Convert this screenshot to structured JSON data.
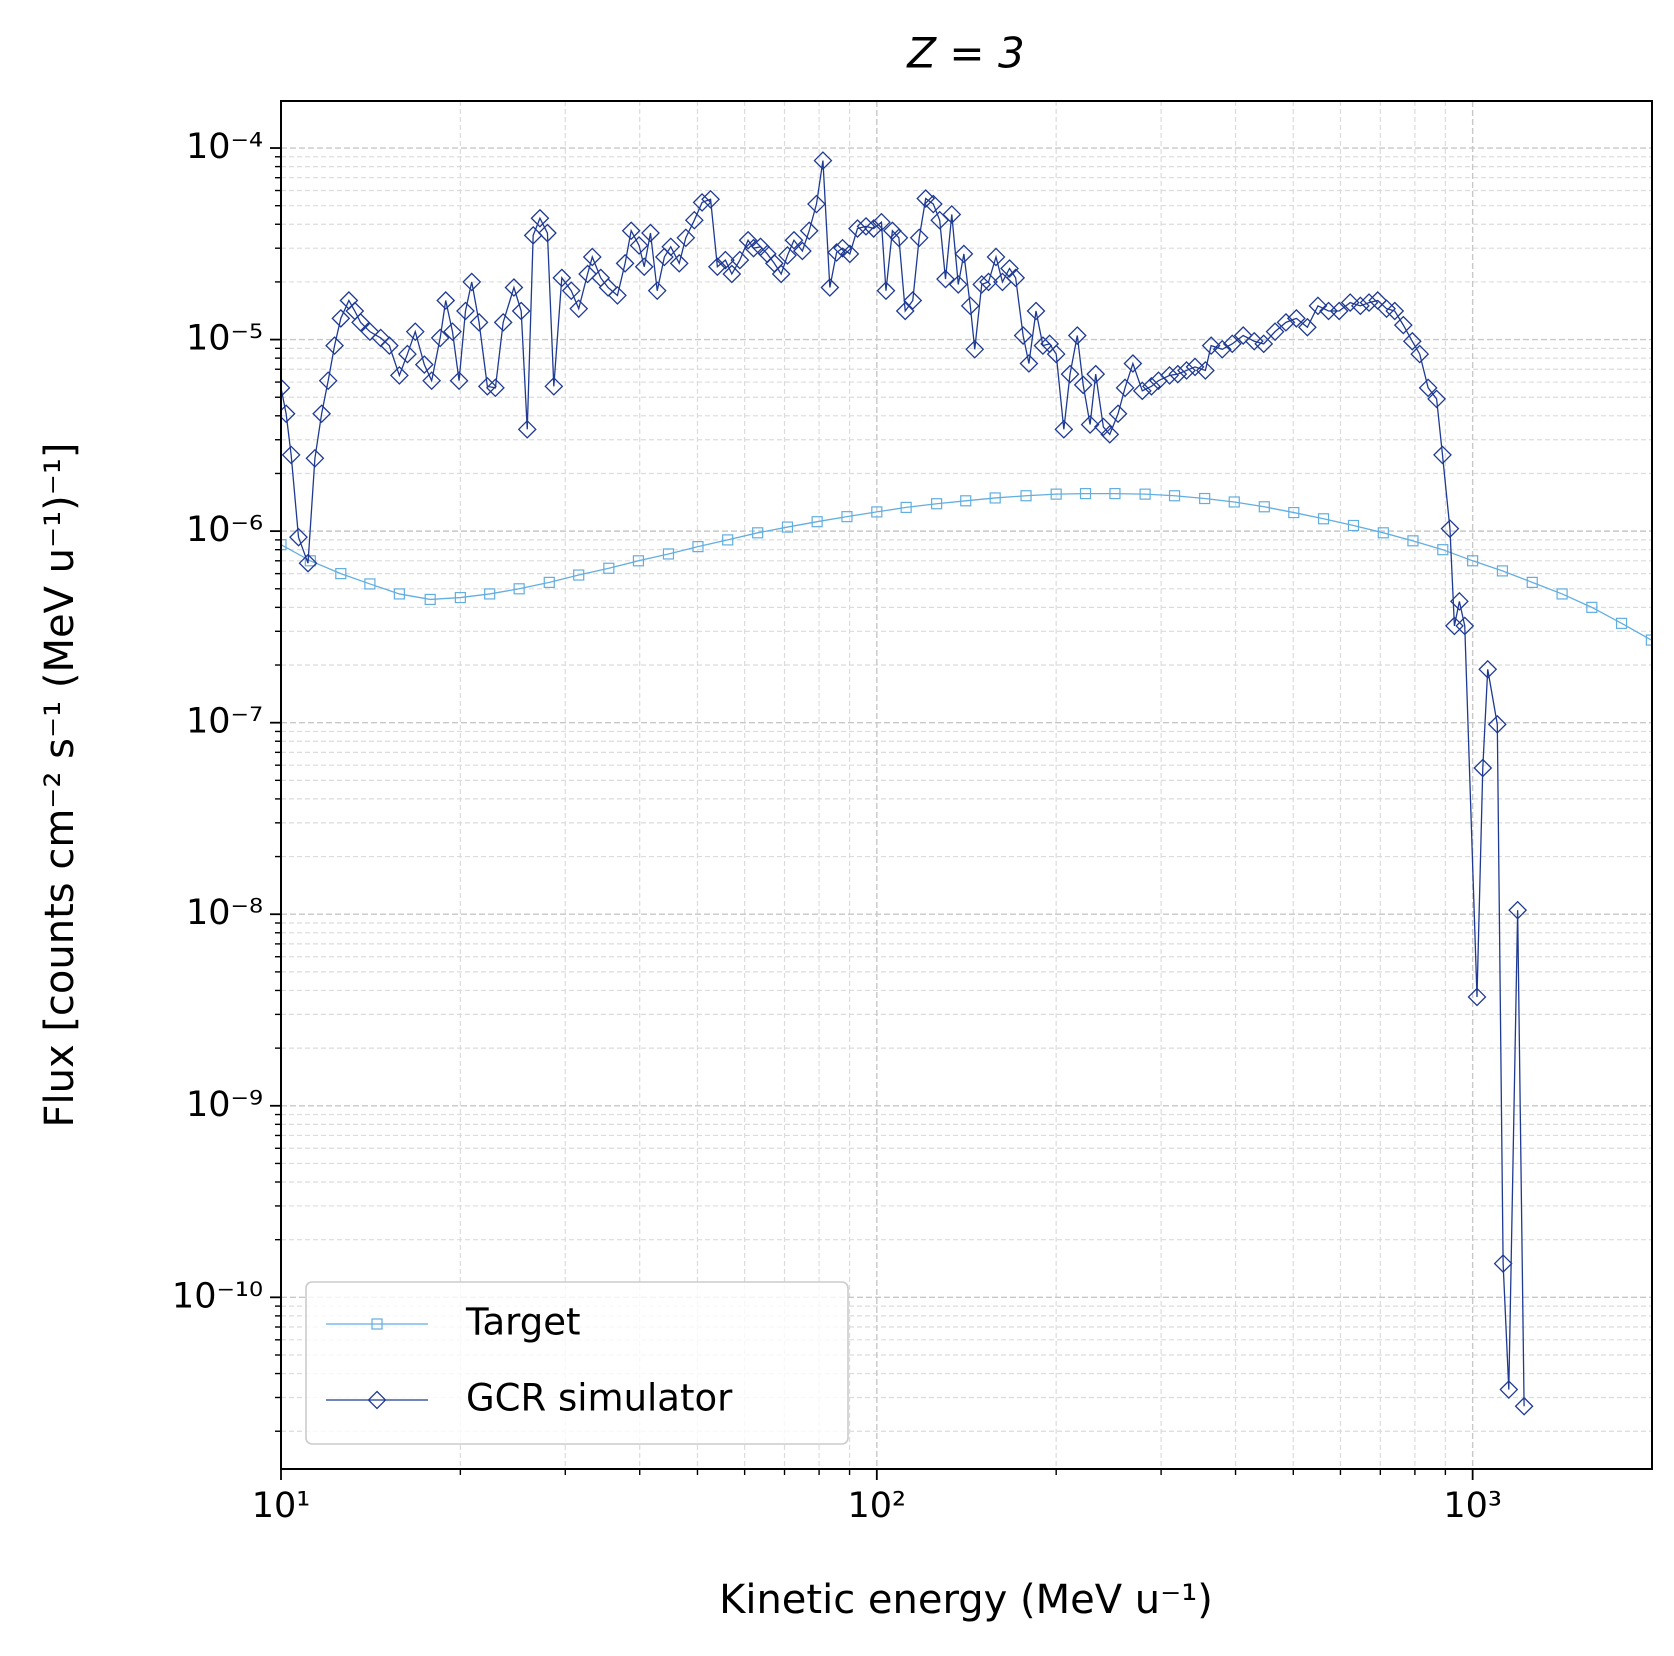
{
  "chart_data": {
    "type": "line",
    "title": "Z = 3",
    "xlabel": "Kinetic energy (MeV u⁻¹)",
    "ylabel": "Flux [counts cm⁻² s⁻¹ (MeV u⁻¹)⁻¹]",
    "xscale": "log",
    "yscale": "log",
    "grid": true,
    "legend": "lower left",
    "xlim": [
      10,
      2000
    ],
    "ylim": [
      1.27e-11,
      0.000176
    ],
    "xticks": [
      {
        "value": 10,
        "label": "10¹"
      },
      {
        "value": 100,
        "label": "10²"
      },
      {
        "value": 1000,
        "label": "10³"
      }
    ],
    "yticks": [
      {
        "value": 1e-10,
        "label": "10⁻¹⁰"
      },
      {
        "value": 1e-09,
        "label": "10⁻⁹"
      },
      {
        "value": 1e-08,
        "label": "10⁻⁸"
      },
      {
        "value": 1e-07,
        "label": "10⁻⁷"
      },
      {
        "value": 1e-06,
        "label": "10⁻⁶"
      },
      {
        "value": 1e-05,
        "label": "10⁻⁵"
      },
      {
        "value": 0.0001,
        "label": "10⁻⁴"
      }
    ],
    "xticks_minor": [
      20,
      30,
      40,
      50,
      60,
      70,
      80,
      90,
      200,
      300,
      400,
      500,
      600,
      700,
      800,
      900
    ],
    "yticks_minor": [
      2e-11,
      3e-11,
      4e-11,
      5e-11,
      6e-11,
      7e-11,
      8e-11,
      9e-11,
      2e-10,
      3e-10,
      4e-10,
      5e-10,
      6e-10,
      7e-10,
      8e-10,
      9e-10,
      2e-09,
      3e-09,
      4e-09,
      5e-09,
      6e-09,
      7e-09,
      8e-09,
      9e-09,
      2e-08,
      3e-08,
      4e-08,
      5e-08,
      6e-08,
      7e-08,
      8e-08,
      9e-08,
      2e-07,
      3e-07,
      4e-07,
      5e-07,
      6e-07,
      7e-07,
      8e-07,
      9e-07,
      2e-06,
      3e-06,
      4e-06,
      5e-06,
      6e-06,
      7e-06,
      8e-06,
      9e-06,
      2e-05,
      3e-05,
      4e-05,
      5e-05,
      6e-05,
      7e-05,
      8e-05,
      9e-05
    ],
    "series": [
      {
        "name": "Target",
        "color": "#62aee0",
        "marker": "square",
        "x": [
          10,
          11.2,
          12.6,
          14.1,
          15.8,
          17.8,
          20,
          22.4,
          25.1,
          28.2,
          31.6,
          35.5,
          39.8,
          44.7,
          50.1,
          56.2,
          63.1,
          70.8,
          79.4,
          89.1,
          100,
          112,
          126,
          141,
          158,
          178,
          200,
          224,
          251,
          282,
          316,
          355,
          398,
          447,
          501,
          562,
          631,
          708,
          794,
          891,
          1000,
          1122,
          1259,
          1413,
          1585,
          1778,
          1995
        ],
        "values": [
          8.5e-07,
          7e-07,
          6e-07,
          5.3e-07,
          4.7e-07,
          4.4e-07,
          4.5e-07,
          4.7e-07,
          5e-07,
          5.4e-07,
          5.9e-07,
          6.4e-07,
          7e-07,
          7.6e-07,
          8.3e-07,
          9e-07,
          9.8e-07,
          1.05e-06,
          1.12e-06,
          1.19e-06,
          1.26e-06,
          1.33e-06,
          1.39e-06,
          1.44e-06,
          1.49e-06,
          1.53e-06,
          1.56e-06,
          1.57e-06,
          1.57e-06,
          1.56e-06,
          1.53e-06,
          1.48e-06,
          1.42e-06,
          1.34e-06,
          1.25e-06,
          1.16e-06,
          1.07e-06,
          9.8e-07,
          8.9e-07,
          8e-07,
          7e-07,
          6.2e-07,
          5.4e-07,
          4.7e-07,
          4e-07,
          3.3e-07,
          2.7e-07
        ]
      },
      {
        "name": "GCR simulator",
        "color": "#1f3a93",
        "marker": "diamond",
        "x": [
          10,
          10.2,
          10.4,
          10.7,
          11.1,
          11.4,
          11.7,
          12.0,
          12.3,
          12.6,
          13.0,
          13.3,
          13.6,
          14.1,
          14.7,
          15.2,
          15.8,
          16.3,
          16.8,
          17.4,
          17.9,
          18.5,
          18.9,
          19.4,
          19.9,
          20.4,
          20.9,
          21.5,
          22.2,
          22.9,
          23.6,
          24.6,
          25.3,
          25.9,
          26.5,
          27.2,
          28.0,
          28.7,
          29.6,
          30.7,
          31.6,
          32.7,
          33.3,
          34.4,
          35.4,
          36.7,
          37.8,
          38.7,
          39.9,
          40.7,
          41.7,
          42.8,
          44.0,
          45.1,
          46.6,
          47.8,
          49.4,
          50.9,
          52.6,
          54.0,
          55.7,
          57.1,
          58.9,
          60.8,
          62.1,
          63.8,
          65.5,
          67.3,
          69.1,
          70.8,
          72.6,
          75.0,
          77.0,
          79.2,
          81.2,
          83.4,
          85.6,
          87.6,
          90.1,
          92.8,
          95.9,
          98.8,
          101.8,
          103.6,
          106.2,
          108.9,
          111.6,
          114.9,
          117.8,
          120.8,
          124.4,
          127.5,
          130.4,
          133.6,
          137.0,
          140.0,
          143.5,
          146.0,
          150.0,
          154.0,
          158.5,
          162.5,
          167.0,
          171.0,
          176.0,
          180.0,
          185.0,
          190.0,
          195.0,
          200.0,
          206.0,
          211.0,
          217.0,
          222.0,
          228.0,
          233.0,
          240.0,
          246.0,
          254.0,
          261.0,
          269.0,
          279.0,
          289.0,
          297.0,
          310.0,
          320.0,
          331.0,
          342.0,
          356.0,
          364.0,
          380.0,
          395.0,
          412.0,
          430.0,
          446.0,
          466.0,
          486.0,
          506.0,
          528.0,
          550.0,
          573.0,
          597.0,
          623.0,
          648.0,
          670.0,
          693.0,
          717.0,
          740.0,
          765.0,
          792.0,
          815.0,
          842.0,
          870.0,
          890.0,
          916.0,
          932.0,
          950.0,
          970.0,
          1017.0,
          1040.0,
          1060.0,
          1100.0,
          1125.0,
          1150.0,
          1190.0,
          1220.0
        ],
        "values": [
          5.6e-06,
          4.1e-06,
          2.5e-06,
          9.3e-07,
          6.8e-07,
          2.4e-06,
          4.1e-06,
          6.1e-06,
          9.3e-06,
          1.29e-05,
          1.6e-05,
          1.41e-05,
          1.23e-05,
          1.1e-05,
          1.02e-05,
          9.3e-06,
          6.5e-06,
          8.4e-06,
          1.1e-05,
          7.4e-06,
          6.1e-06,
          1.02e-05,
          1.6e-05,
          1.1e-05,
          6.1e-06,
          1.41e-05,
          2e-05,
          1.23e-05,
          5.7e-06,
          5.6e-06,
          1.23e-05,
          1.87e-05,
          1.41e-05,
          3.4e-06,
          3.5e-05,
          4.3e-05,
          3.6e-05,
          5.7e-06,
          2.1e-05,
          1.8e-05,
          1.45e-05,
          2.2e-05,
          2.7e-05,
          2.1e-05,
          1.87e-05,
          1.7e-05,
          2.5e-05,
          3.7e-05,
          3.1e-05,
          2.4e-05,
          3.6e-05,
          1.8e-05,
          2.7e-05,
          3.05e-05,
          2.5e-05,
          3.4e-05,
          4.2e-05,
          5.2e-05,
          5.4e-05,
          2.4e-05,
          2.6e-05,
          2.2e-05,
          2.6e-05,
          3.3e-05,
          3e-05,
          3.05e-05,
          2.8e-05,
          2.5e-05,
          2.2e-05,
          2.75e-05,
          3.3e-05,
          2.9e-05,
          3.7e-05,
          5.1e-05,
          8.6e-05,
          1.87e-05,
          2.85e-05,
          3e-05,
          2.8e-05,
          3.8e-05,
          3.9e-05,
          3.8e-05,
          4.1e-05,
          1.8e-05,
          3.7e-05,
          3.4e-05,
          1.41e-05,
          1.6e-05,
          3.4e-05,
          5.45e-05,
          5.1e-05,
          4.2e-05,
          2.07e-05,
          4.5e-05,
          1.94e-05,
          2.8e-05,
          1.5e-05,
          8.9e-06,
          1.94e-05,
          2e-05,
          2.7e-05,
          2e-05,
          2.35e-05,
          2.1e-05,
          1.05e-05,
          7.5e-06,
          1.41e-05,
          9.3e-06,
          9.5e-06,
          8.4e-06,
          3.4e-06,
          6.6e-06,
          1.05e-05,
          5.8e-06,
          3.6e-06,
          6.6e-06,
          3.5e-06,
          3.2e-06,
          4.1e-06,
          5.6e-06,
          7.5e-06,
          5.4e-06,
          5.7e-06,
          6.1e-06,
          6.5e-06,
          6.6e-06,
          6.9e-06,
          7.2e-06,
          6.9e-06,
          9.3e-06,
          8.9e-06,
          9.5e-06,
          1.05e-05,
          9.8e-06,
          9.5e-06,
          1.1e-05,
          1.23e-05,
          1.29e-05,
          1.16e-05,
          1.5e-05,
          1.41e-05,
          1.41e-05,
          1.56e-05,
          1.5e-05,
          1.56e-05,
          1.6e-05,
          1.45e-05,
          1.41e-05,
          1.19e-05,
          9.8e-06,
          8.4e-06,
          5.6e-06,
          4.9e-06,
          2.5e-06,
          1.03e-06,
          3.2e-07,
          4.3e-07,
          3.2e-07,
          3.7e-09,
          5.8e-08,
          1.9e-07,
          9.8e-08,
          1.5e-10,
          3.3e-11,
          1.05e-08,
          2.7e-11
        ]
      }
    ]
  }
}
